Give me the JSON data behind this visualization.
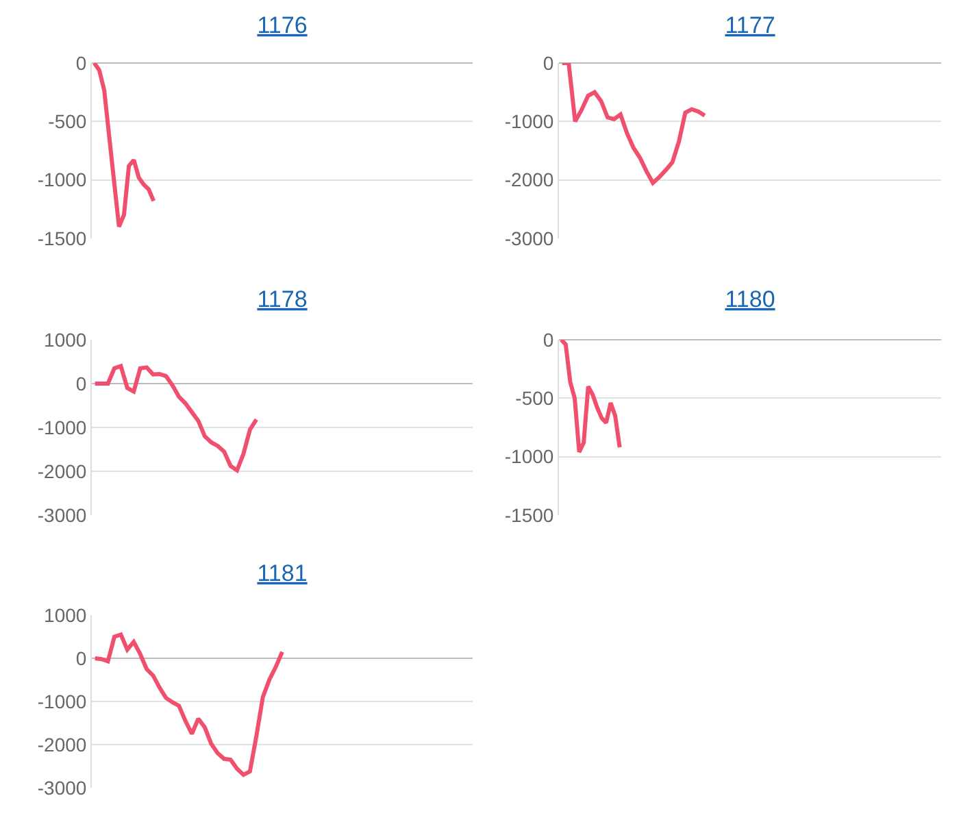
{
  "chart_data": [
    {
      "type": "line",
      "title": "1176",
      "tick_labels": "y",
      "grid": "y",
      "color": "#f0506e",
      "ylim": [
        -1500,
        0
      ],
      "yticks": [
        0,
        -500,
        -1000,
        -1500
      ],
      "categories": [
        null,
        null,
        null,
        null,
        null,
        null,
        null,
        null,
        null,
        null,
        null,
        null,
        null,
        null,
        null,
        null,
        null,
        null,
        null,
        null,
        null,
        null,
        null,
        null,
        null,
        null,
        null,
        null,
        null,
        null,
        null,
        null,
        null,
        null,
        null,
        null,
        null,
        null,
        null,
        null,
        null,
        null,
        null,
        null,
        null,
        null,
        null,
        null,
        null,
        null,
        null,
        null,
        null,
        null,
        null,
        null,
        null,
        null,
        null,
        null,
        null,
        null,
        null,
        null,
        null,
        null,
        null,
        null,
        null,
        null,
        null,
        null,
        null,
        null,
        null,
        null,
        null
      ],
      "values": [
        0,
        -60,
        -230,
        -620,
        -1010,
        -1400,
        -1300,
        -880,
        -830,
        -980,
        -1040,
        -1080,
        -1180,
        null,
        null,
        null,
        null,
        null,
        null,
        null,
        null,
        null,
        null,
        null,
        null,
        null,
        null,
        null,
        null,
        null,
        null,
        null,
        null,
        null,
        null,
        null,
        null,
        null,
        null,
        null,
        null,
        null,
        null,
        null,
        null,
        null,
        null,
        null,
        null,
        null,
        null,
        null,
        null,
        null,
        null,
        null,
        null,
        null,
        null,
        null,
        null,
        null,
        null,
        null,
        null,
        null,
        null,
        null,
        null,
        null,
        null,
        null,
        null,
        null,
        null,
        null,
        null
      ]
    },
    {
      "type": "line",
      "title": "1177",
      "tick_labels": "y",
      "grid": "y",
      "color": "#f0506e",
      "ylim": [
        -3000,
        0
      ],
      "yticks": [
        0,
        -1000,
        -2000,
        -3000
      ],
      "categories": [
        null,
        null,
        null,
        null,
        null,
        null,
        null,
        null,
        null,
        null,
        null,
        null,
        null,
        null,
        null,
        null,
        null,
        null,
        null,
        null,
        null,
        null,
        null,
        null,
        null,
        null,
        null,
        null,
        null,
        null,
        null,
        null,
        null,
        null,
        null,
        null,
        null,
        null,
        null,
        null,
        null,
        null,
        null,
        null,
        null,
        null,
        null,
        null,
        null,
        null,
        null,
        null,
        null,
        null,
        null,
        null,
        null,
        null,
        null
      ],
      "values": [
        0,
        0,
        -1000,
        -800,
        -560,
        -500,
        -650,
        -930,
        -960,
        -880,
        -1200,
        -1450,
        -1620,
        -1850,
        -2050,
        -1950,
        -1830,
        -1700,
        -1350,
        -850,
        -790,
        -830,
        -900,
        null,
        null,
        null,
        null,
        null,
        null,
        null,
        null,
        null,
        null,
        null,
        null,
        null,
        null,
        null,
        null,
        null,
        null,
        null,
        null,
        null,
        null,
        null,
        null,
        null,
        null,
        null,
        null,
        null,
        null,
        null,
        null,
        null,
        null,
        null,
        null
      ]
    },
    {
      "type": "line",
      "title": "1178",
      "tick_labels": "y",
      "grid": "y",
      "color": "#f0506e",
      "ylim": [
        -3000,
        1000
      ],
      "yticks": [
        1000,
        0,
        -1000,
        -2000,
        -3000
      ],
      "categories": [
        null,
        null,
        null,
        null,
        null,
        null,
        null,
        null,
        null,
        null,
        null,
        null,
        null,
        null,
        null,
        null,
        null,
        null,
        null,
        null,
        null,
        null,
        null,
        null,
        null,
        null,
        null,
        null,
        null,
        null,
        null,
        null,
        null,
        null,
        null,
        null,
        null,
        null,
        null,
        null,
        null,
        null,
        null,
        null,
        null,
        null,
        null,
        null,
        null,
        null,
        null,
        null,
        null,
        null,
        null,
        null,
        null,
        null,
        null
      ],
      "values": [
        0,
        0,
        0,
        350,
        400,
        -100,
        -180,
        350,
        370,
        210,
        220,
        170,
        -40,
        -300,
        -450,
        -650,
        -850,
        -1200,
        -1340,
        -1420,
        -1550,
        -1880,
        -1980,
        -1600,
        -1050,
        -820,
        null,
        null,
        null,
        null,
        null,
        null,
        null,
        null,
        null,
        null,
        null,
        null,
        null,
        null,
        null,
        null,
        null,
        null,
        null,
        null,
        null,
        null,
        null,
        null,
        null,
        null,
        null,
        null,
        null,
        null,
        null,
        null,
        null
      ]
    },
    {
      "type": "line",
      "title": "1180",
      "tick_labels": "y",
      "grid": "y",
      "color": "#f0506e",
      "ylim": [
        -1500,
        0
      ],
      "yticks": [
        0,
        -500,
        -1000,
        -1500
      ],
      "categories": [
        null,
        null,
        null,
        null,
        null,
        null,
        null,
        null,
        null,
        null,
        null,
        null,
        null,
        null,
        null,
        null,
        null,
        null,
        null,
        null,
        null,
        null,
        null,
        null,
        null,
        null,
        null,
        null,
        null,
        null,
        null,
        null,
        null,
        null,
        null,
        null,
        null,
        null,
        null,
        null,
        null,
        null,
        null,
        null,
        null,
        null,
        null,
        null,
        null,
        null,
        null,
        null,
        null,
        null,
        null,
        null,
        null,
        null,
        null,
        null,
        null,
        null,
        null,
        null,
        null,
        null,
        null,
        null,
        null,
        null,
        null,
        null,
        null,
        null,
        null,
        null,
        null,
        null,
        null,
        null,
        null,
        null,
        null,
        null,
        null
      ],
      "values": [
        0,
        -40,
        -360,
        -500,
        -960,
        -880,
        -400,
        -470,
        -580,
        -670,
        -710,
        -540,
        -650,
        -920,
        null,
        null,
        null,
        null,
        null,
        null,
        null,
        null,
        null,
        null,
        null,
        null,
        null,
        null,
        null,
        null,
        null,
        null,
        null,
        null,
        null,
        null,
        null,
        null,
        null,
        null,
        null,
        null,
        null,
        null,
        null,
        null,
        null,
        null,
        null,
        null,
        null,
        null,
        null,
        null,
        null,
        null,
        null,
        null,
        null,
        null,
        null,
        null,
        null,
        null,
        null,
        null,
        null,
        null,
        null,
        null,
        null,
        null,
        null,
        null,
        null,
        null,
        null,
        null,
        null,
        null,
        null,
        null,
        null,
        null,
        null
      ]
    },
    {
      "type": "line",
      "title": "1181",
      "tick_labels": "y",
      "grid": "y",
      "color": "#f0506e",
      "ylim": [
        -3000,
        1000
      ],
      "yticks": [
        1000,
        0,
        -1000,
        -2000,
        -3000
      ],
      "categories": [
        null,
        null,
        null,
        null,
        null,
        null,
        null,
        null,
        null,
        null,
        null,
        null,
        null,
        null,
        null,
        null,
        null,
        null,
        null,
        null,
        null,
        null,
        null,
        null,
        null,
        null,
        null,
        null,
        null,
        null,
        null,
        null,
        null,
        null,
        null,
        null,
        null,
        null,
        null,
        null,
        null,
        null,
        null,
        null,
        null,
        null,
        null,
        null,
        null,
        null,
        null,
        null,
        null,
        null,
        null,
        null,
        null,
        null,
        null
      ],
      "values": [
        0,
        -20,
        -70,
        500,
        550,
        200,
        380,
        100,
        -250,
        -400,
        -680,
        -920,
        -1020,
        -1100,
        -1450,
        -1750,
        -1400,
        -1600,
        -1980,
        -2200,
        -2330,
        -2350,
        -2560,
        -2700,
        -2620,
        -1800,
        -900,
        -500,
        -200,
        150,
        null,
        null,
        null,
        null,
        null,
        null,
        null,
        null,
        null,
        null,
        null,
        null,
        null,
        null,
        null,
        null,
        null,
        null,
        null,
        null,
        null,
        null,
        null,
        null,
        null,
        null,
        null,
        null,
        null
      ]
    }
  ]
}
